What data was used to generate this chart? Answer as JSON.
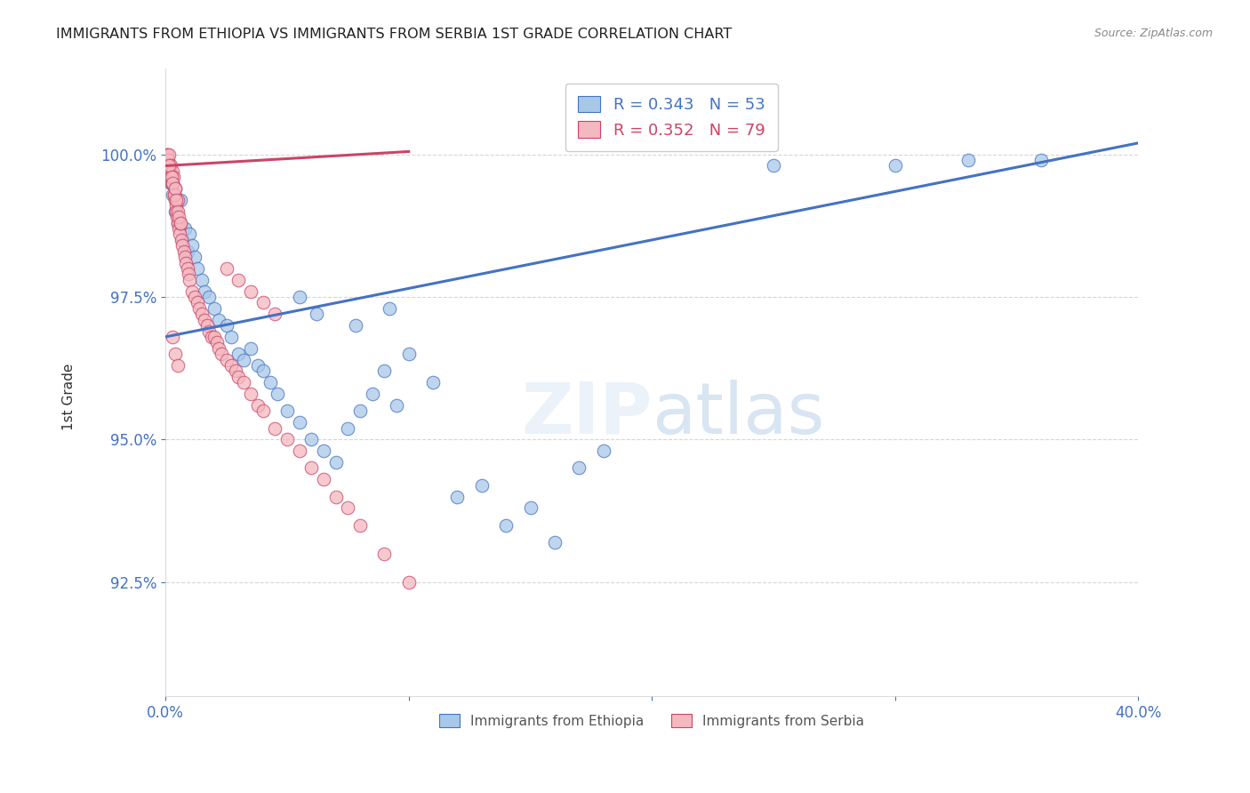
{
  "title": "IMMIGRANTS FROM ETHIOPIA VS IMMIGRANTS FROM SERBIA 1ST GRADE CORRELATION CHART",
  "source": "Source: ZipAtlas.com",
  "ylabel": "1st Grade",
  "ylabel_values": [
    92.5,
    95.0,
    97.5,
    100.0
  ],
  "xlim": [
    0.0,
    40.0
  ],
  "ylim": [
    90.5,
    101.5
  ],
  "R_ethiopia": 0.343,
  "N_ethiopia": 53,
  "R_serbia": 0.352,
  "N_serbia": 79,
  "color_ethiopia_fill": "#a8c8e8",
  "color_ethiopia_edge": "#4472c4",
  "color_serbia_fill": "#f4b8c0",
  "color_serbia_edge": "#cc4466",
  "color_line_ethiopia": "#4472c4",
  "color_line_serbia": "#cc4466",
  "color_axis_labels": "#4472c4",
  "color_grid": "#cccccc",
  "color_title": "#222222",
  "ethiopia_x": [
    0.2,
    0.3,
    0.4,
    0.5,
    0.6,
    0.7,
    0.8,
    0.9,
    1.0,
    1.1,
    1.2,
    1.3,
    1.5,
    1.6,
    1.8,
    2.0,
    2.2,
    2.5,
    2.7,
    3.0,
    3.2,
    3.5,
    3.8,
    4.0,
    4.3,
    4.6,
    5.0,
    5.5,
    6.0,
    6.5,
    7.0,
    7.5,
    8.0,
    8.5,
    9.0,
    9.5,
    10.0,
    11.0,
    12.0,
    13.0,
    14.0,
    15.0,
    16.0,
    17.0,
    18.0,
    5.5,
    6.2,
    7.8,
    9.2,
    25.0,
    30.0,
    33.0,
    36.0
  ],
  "ethiopia_y": [
    99.5,
    99.3,
    99.0,
    98.8,
    99.2,
    98.5,
    98.7,
    98.3,
    98.6,
    98.4,
    98.2,
    98.0,
    97.8,
    97.6,
    97.5,
    97.3,
    97.1,
    97.0,
    96.8,
    96.5,
    96.4,
    96.6,
    96.3,
    96.2,
    96.0,
    95.8,
    95.5,
    95.3,
    95.0,
    94.8,
    94.6,
    95.2,
    95.5,
    95.8,
    96.2,
    95.6,
    96.5,
    96.0,
    94.0,
    94.2,
    93.5,
    93.8,
    93.2,
    94.5,
    94.8,
    97.5,
    97.2,
    97.0,
    97.3,
    99.8,
    99.8,
    99.9,
    99.9
  ],
  "serbia_x": [
    0.05,
    0.08,
    0.1,
    0.12,
    0.15,
    0.18,
    0.2,
    0.22,
    0.25,
    0.28,
    0.3,
    0.32,
    0.35,
    0.38,
    0.4,
    0.42,
    0.45,
    0.48,
    0.5,
    0.52,
    0.55,
    0.58,
    0.6,
    0.65,
    0.7,
    0.75,
    0.8,
    0.85,
    0.9,
    0.95,
    1.0,
    1.1,
    1.2,
    1.3,
    1.4,
    1.5,
    1.6,
    1.7,
    1.8,
    1.9,
    2.0,
    2.1,
    2.2,
    2.3,
    2.5,
    2.7,
    2.9,
    3.0,
    3.2,
    3.5,
    3.8,
    4.0,
    4.5,
    5.0,
    5.5,
    6.0,
    6.5,
    7.0,
    7.5,
    8.0,
    9.0,
    10.0,
    0.15,
    0.25,
    0.3,
    0.35,
    0.4,
    0.45,
    0.5,
    0.55,
    0.6,
    0.3,
    0.4,
    0.5,
    2.5,
    3.0,
    3.5,
    4.0,
    4.5
  ],
  "serbia_y": [
    100.0,
    100.0,
    99.8,
    99.9,
    100.0,
    99.7,
    99.8,
    99.6,
    99.5,
    99.7,
    99.5,
    99.6,
    99.3,
    99.2,
    99.4,
    99.1,
    99.0,
    98.9,
    99.2,
    98.8,
    98.7,
    98.6,
    98.8,
    98.5,
    98.4,
    98.3,
    98.2,
    98.1,
    98.0,
    97.9,
    97.8,
    97.6,
    97.5,
    97.4,
    97.3,
    97.2,
    97.1,
    97.0,
    96.9,
    96.8,
    96.8,
    96.7,
    96.6,
    96.5,
    96.4,
    96.3,
    96.2,
    96.1,
    96.0,
    95.8,
    95.6,
    95.5,
    95.2,
    95.0,
    94.8,
    94.5,
    94.3,
    94.0,
    93.8,
    93.5,
    93.0,
    92.5,
    99.8,
    99.6,
    99.5,
    99.3,
    99.4,
    99.2,
    99.0,
    98.9,
    98.8,
    96.8,
    96.5,
    96.3,
    98.0,
    97.8,
    97.6,
    97.4,
    97.2
  ],
  "line_eth_x0": 0.0,
  "line_eth_y0": 96.8,
  "line_eth_x1": 40.0,
  "line_eth_y1": 100.2,
  "line_serb_x0": 0.0,
  "line_serb_y0": 99.8,
  "line_serb_x1": 10.0,
  "line_serb_y1": 100.05
}
